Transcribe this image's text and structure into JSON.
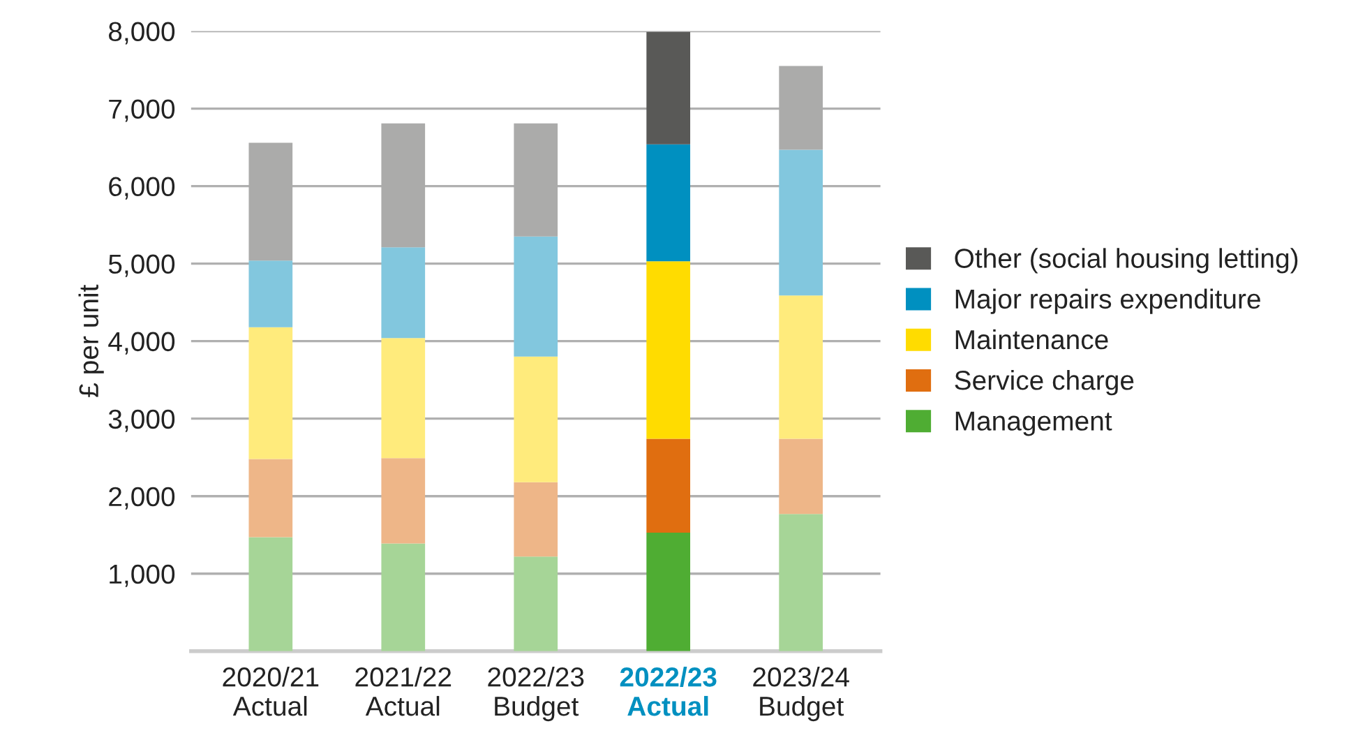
{
  "chart_data": {
    "type": "bar",
    "stacked": true,
    "ylabel": "£ per unit",
    "categories": [
      "2020/21\nActual",
      "2021/22\nActual",
      "2022/23\nBudget",
      "2022/23\nActual",
      "2023/24\nBudget"
    ],
    "series": [
      {
        "name": "Management",
        "color": "#4fad33",
        "colors": [
          "#a6d597",
          "#a6d597",
          "#a6d597",
          "#4fad33",
          "#a6d597"
        ],
        "values": [
          1470,
          1390,
          1220,
          1530,
          1770
        ]
      },
      {
        "name": "Service charge",
        "color": "#e06e10",
        "colors": [
          "#eeb688",
          "#eeb688",
          "#eeb688",
          "#e06e10",
          "#eeb688"
        ],
        "values": [
          1010,
          1100,
          960,
          1210,
          970
        ]
      },
      {
        "name": "Maintenance",
        "color": "#ffdc00",
        "colors": [
          "#ffeb7c",
          "#ffeb7c",
          "#ffeb7c",
          "#ffdc00",
          "#ffeb7c"
        ],
        "values": [
          1700,
          1550,
          1620,
          2290,
          1850
        ]
      },
      {
        "name": "Major repairs expenditure",
        "color": "#0090c0",
        "colors": [
          "#82c7de",
          "#82c7de",
          "#82c7de",
          "#0090c0",
          "#82c7de"
        ],
        "values": [
          860,
          1170,
          1550,
          1510,
          1880
        ]
      },
      {
        "name": "Other (social housing letting)",
        "color": "#595957",
        "colors": [
          "#ababaa",
          "#ababaa",
          "#ababaa",
          "#595957",
          "#ababaa"
        ],
        "values": [
          1520,
          1600,
          1460,
          1450,
          1080
        ]
      }
    ],
    "ylim": [
      0,
      8000
    ],
    "yticks": [
      {
        "value": 1000,
        "label": "1,000"
      },
      {
        "value": 2000,
        "label": "2,000"
      },
      {
        "value": 3000,
        "label": "3,000"
      },
      {
        "value": 4000,
        "label": "4,000"
      },
      {
        "value": 5000,
        "label": "5,000"
      },
      {
        "value": 6000,
        "label": "6,000"
      },
      {
        "value": 7000,
        "label": "7,000"
      },
      {
        "value": 8000,
        "label": "8,000"
      }
    ],
    "grid": "y",
    "legend": "right"
  }
}
